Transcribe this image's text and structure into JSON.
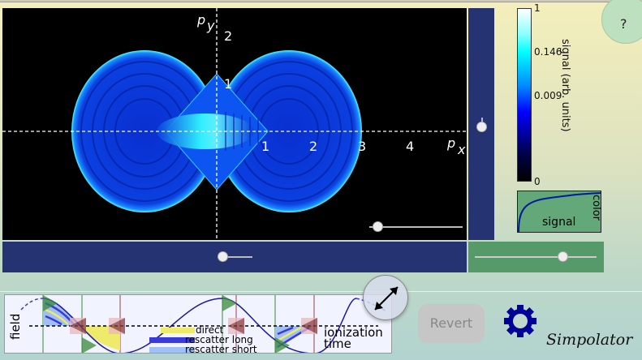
{
  "plot": {
    "x_axis_label": "p",
    "x_axis_sub": "x",
    "y_axis_label": "p",
    "y_axis_sub": "y",
    "x_ticks": [
      "1",
      "2",
      "3",
      "4"
    ],
    "y_ticks": [
      "1",
      "2"
    ]
  },
  "help": {
    "label": "?"
  },
  "colorbar": {
    "ticks": [
      "1",
      "0.146",
      "0.009",
      "0"
    ],
    "label": "signal (arb. units)",
    "mapping_x_label": "signal",
    "mapping_y_label": "color"
  },
  "field_panel": {
    "y_label": "field",
    "x_label_line1": "ionization",
    "x_label_line2": "time",
    "legend": [
      {
        "label": "direct",
        "color": "#eeea6a"
      },
      {
        "label": "rescatter long",
        "color": "#3a3ad8"
      },
      {
        "label": "rescatter short",
        "color": "#9fbff5"
      }
    ]
  },
  "buttons": {
    "revert": "Revert"
  },
  "brand": "Simpolator",
  "colors": {
    "slider_panel": "#253372",
    "green_panel": "#559a68",
    "accent": "#000099"
  }
}
